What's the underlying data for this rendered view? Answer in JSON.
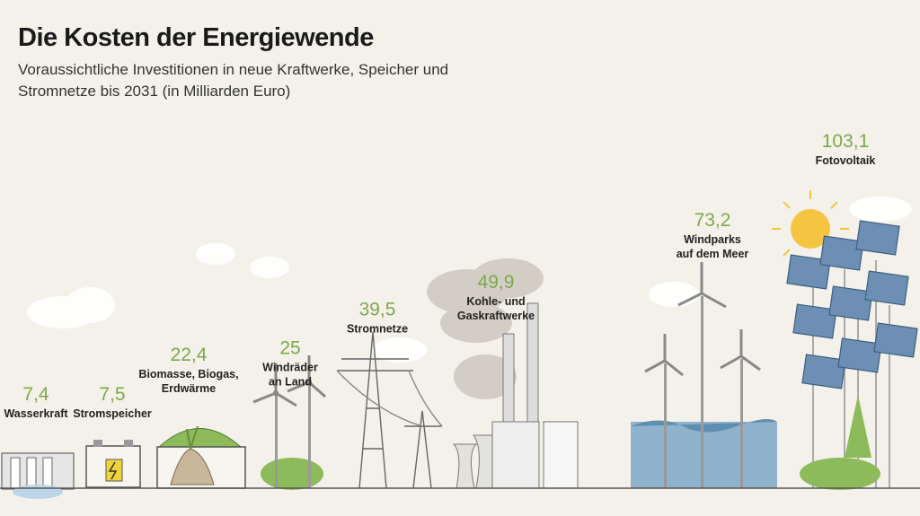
{
  "title": "Die Kosten der Energiewende",
  "subtitle": "Voraussichtliche Investitionen in neue Kraftwerke, Speicher und Stromnetze bis 2031 (in Milliarden Euro)",
  "chart_data": {
    "type": "bar",
    "title": "Die Kosten der Energiewende",
    "subtitle": "Voraussichtliche Investitionen in neue Kraftwerke, Speicher und Stromnetze bis 2031 (in Milliarden Euro)",
    "categories": [
      [
        "Wasserkraft"
      ],
      [
        "Stromspeicher"
      ],
      [
        "Biomasse, Biogas,",
        "Erdwärme"
      ],
      [
        "Windräder",
        "an Land"
      ],
      [
        "Stromnetze"
      ],
      [
        "Kohle- und",
        "Gaskraftwerke"
      ],
      [
        "Windparks",
        "auf dem Meer"
      ],
      [
        "Fotovoltaik"
      ]
    ],
    "values": [
      7.4,
      7.5,
      22.4,
      25,
      39.5,
      49.9,
      73.2,
      103.1
    ],
    "value_labels": [
      "7,4",
      "7,5",
      "22,4",
      "25",
      "39,5",
      "49,9",
      "73,2",
      "103,1"
    ],
    "unit": "Milliarden Euro",
    "colors": {
      "value": "#7fa84a",
      "label": "#222222",
      "background": "#f3f1ea",
      "ground": "#555555",
      "foliage": "#8dbb5b",
      "water": "#8fb3cc",
      "sun": "#f5c542",
      "panel": "#6d8fb3"
    }
  }
}
